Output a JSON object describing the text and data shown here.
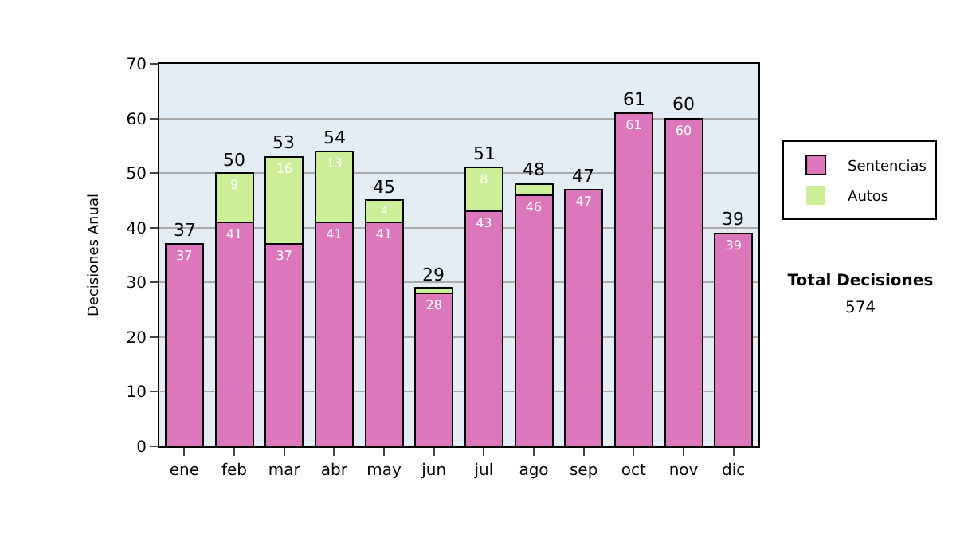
{
  "chart_data": {
    "type": "bar",
    "stacked": true,
    "ylabel": "Decisiones Anual",
    "categories": [
      "ene",
      "feb",
      "mar",
      "abr",
      "may",
      "jun",
      "jul",
      "ago",
      "sep",
      "oct",
      "nov",
      "dic"
    ],
    "series": [
      {
        "name": "Sentencias",
        "color": "#dd77bb",
        "values": [
          37,
          41,
          37,
          41,
          41,
          28,
          43,
          46,
          47,
          61,
          60,
          39
        ],
        "value_labels": [
          "37",
          "41",
          "37",
          "41",
          "41",
          "28",
          "43",
          "46",
          "47",
          "61",
          "60",
          "39"
        ]
      },
      {
        "name": "Autos",
        "color": "#ccee99",
        "values": [
          0,
          9,
          16,
          13,
          4,
          1,
          8,
          2,
          0,
          0,
          0,
          0
        ],
        "value_labels": [
          null,
          "9",
          "16",
          "13",
          "4",
          null,
          "8",
          null,
          null,
          null,
          null,
          null
        ]
      }
    ],
    "totals": [
      "37",
      "50",
      "53",
      "54",
      "45",
      "29",
      "51",
      "48",
      "47",
      "61",
      "60",
      "39"
    ],
    "ylim": [
      0,
      70
    ],
    "yticks": [
      0,
      10,
      20,
      30,
      40,
      50,
      60,
      70
    ],
    "grid": "y",
    "legend": "right",
    "annotations": [
      "Total Decisiones",
      "574"
    ]
  }
}
